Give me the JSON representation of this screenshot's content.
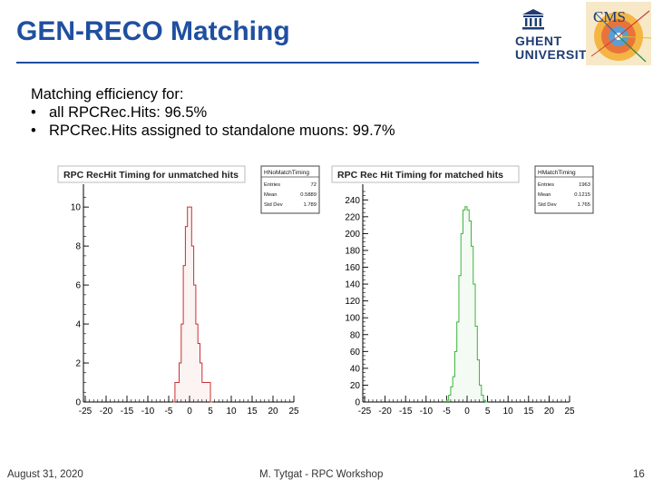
{
  "slide": {
    "title": "GEN-RECO Matching",
    "intro": "Matching efficiency for:",
    "bullets": [
      {
        "marker": "•",
        "text": "all RPCRec.Hits: 96.5%"
      },
      {
        "marker": "•",
        "text": "RPCRec.Hits assigned to standalone muons: 99.7%"
      }
    ]
  },
  "logos": {
    "university_line1": "GHENT",
    "university_line2": "UNIVERSITY",
    "experiment": "CMS"
  },
  "footer": {
    "date": "August 31, 2020",
    "center": "M. Tytgat - RPC Workshop",
    "page": "16"
  },
  "colors": {
    "title": "#1f4fa0",
    "unmatched_line": "#c83232",
    "matched_line": "#3cb43c"
  },
  "chart_data": [
    {
      "type": "histogram",
      "title": "RPC RecHit Timing for unmatched hits",
      "stats": {
        "name": "HNoMatchTiming",
        "rows": [
          {
            "label": "Entries",
            "value": "72"
          },
          {
            "label": "Mean",
            "value": "0.5889"
          },
          {
            "label": "Std Dev",
            "value": "1.789"
          }
        ]
      },
      "xlim": [
        -25,
        25
      ],
      "ylim": [
        0,
        10.8
      ],
      "xticks": [
        "-25",
        "-20",
        "-15",
        "-10",
        "-5",
        "0",
        "5",
        "10",
        "15",
        "20",
        "25"
      ],
      "xtick_values": [
        -25,
        -20,
        -15,
        -10,
        -5,
        0,
        5,
        10,
        15,
        20,
        25
      ],
      "yticks": [
        "0",
        "2",
        "4",
        "6",
        "8",
        "10"
      ],
      "ytick_values": [
        0,
        2,
        4,
        6,
        8,
        10
      ],
      "x": [
        -4,
        -3.5,
        -3,
        -2.5,
        -2,
        -1.5,
        -1,
        -0.5,
        0,
        0.5,
        1,
        1.5,
        2,
        2.5,
        3,
        3.5,
        4,
        4.5,
        5
      ],
      "values": [
        0,
        1,
        1,
        2,
        4,
        7,
        9,
        10,
        10,
        8,
        6,
        4,
        3,
        2,
        1,
        1,
        1,
        1,
        0
      ]
    },
    {
      "type": "histogram",
      "title": "RPC Rec Hit Timing for matched hits",
      "stats": {
        "name": "HMatchTiming",
        "rows": [
          {
            "label": "Entries",
            "value": "1963"
          },
          {
            "label": "Mean",
            "value": "0.1215"
          },
          {
            "label": "Std Dev",
            "value": "1.765"
          }
        ]
      },
      "xlim": [
        -25,
        25
      ],
      "ylim": [
        0,
        250
      ],
      "xticks": [
        "-25",
        "-20",
        "-15",
        "-10",
        "-5",
        "0",
        "5",
        "10",
        "15",
        "20",
        "25"
      ],
      "xtick_values": [
        -25,
        -20,
        -15,
        -10,
        -5,
        0,
        5,
        10,
        15,
        20,
        25
      ],
      "yticks": [
        "0",
        "20",
        "40",
        "60",
        "80",
        "100",
        "120",
        "140",
        "160",
        "180",
        "200",
        "220",
        "240"
      ],
      "ytick_values": [
        0,
        20,
        40,
        60,
        80,
        100,
        120,
        140,
        160,
        180,
        200,
        220,
        240
      ],
      "x": [
        -5,
        -4.5,
        -4,
        -3.5,
        -3,
        -2.5,
        -2,
        -1.5,
        -1,
        -0.5,
        0,
        0.5,
        1,
        1.5,
        2,
        2.5,
        3,
        3.5,
        4,
        4.5
      ],
      "values": [
        2,
        8,
        18,
        30,
        60,
        95,
        150,
        200,
        228,
        232,
        228,
        215,
        185,
        140,
        90,
        50,
        20,
        8,
        2,
        0
      ]
    }
  ]
}
